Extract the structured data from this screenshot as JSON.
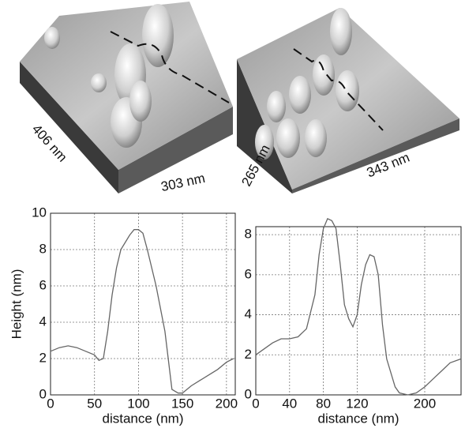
{
  "images": [
    {
      "labels": [
        "406 nm",
        "303 nm"
      ]
    },
    {
      "labels": [
        "265 nm",
        "343 nm"
      ]
    }
  ],
  "chart_data": [
    {
      "type": "line",
      "y_label": "Height (nm)",
      "x_label": "distance (nm)",
      "color": "#666666",
      "grid": true,
      "xlim": [
        0,
        210
      ],
      "xticks": [
        0,
        50,
        100,
        150,
        200
      ],
      "ylim": [
        0,
        10
      ],
      "yticks": [
        0,
        2,
        4,
        6,
        8,
        10
      ],
      "x": [
        0,
        10,
        20,
        30,
        40,
        50,
        55,
        60,
        65,
        70,
        75,
        80,
        90,
        95,
        100,
        105,
        110,
        120,
        130,
        138,
        145,
        150,
        155,
        160,
        170,
        180,
        190,
        200,
        208
      ],
      "values": [
        2.4,
        2.6,
        2.7,
        2.6,
        2.4,
        2.2,
        1.9,
        2.0,
        3.5,
        5.5,
        7.0,
        8.0,
        8.8,
        9.1,
        9.1,
        8.9,
        8.0,
        6.0,
        3.5,
        0.3,
        0.1,
        0.1,
        0.3,
        0.5,
        0.8,
        1.1,
        1.4,
        1.8,
        2.0
      ]
    },
    {
      "type": "line",
      "x_label": "distance (nm)",
      "color": "#666666",
      "grid": true,
      "xlim": [
        0,
        243
      ],
      "xticks": [
        0,
        40,
        80,
        120,
        200
      ],
      "ylim": [
        0,
        8.4
      ],
      "yticks": [
        0,
        2,
        4,
        6,
        8
      ],
      "x": [
        0,
        10,
        20,
        30,
        40,
        50,
        60,
        70,
        75,
        80,
        85,
        90,
        95,
        100,
        105,
        110,
        115,
        120,
        125,
        130,
        135,
        140,
        145,
        150,
        155,
        165,
        170,
        180,
        190,
        200,
        210,
        220,
        230,
        243
      ],
      "values": [
        2.0,
        2.3,
        2.6,
        2.8,
        2.8,
        2.9,
        3.3,
        5.0,
        7.0,
        8.3,
        8.8,
        8.7,
        8.3,
        6.5,
        4.5,
        3.8,
        3.4,
        4.0,
        5.5,
        6.5,
        7.0,
        6.9,
        6.0,
        3.5,
        1.8,
        0.4,
        0.1,
        0.0,
        0.1,
        0.4,
        0.8,
        1.2,
        1.6,
        1.8
      ]
    }
  ]
}
